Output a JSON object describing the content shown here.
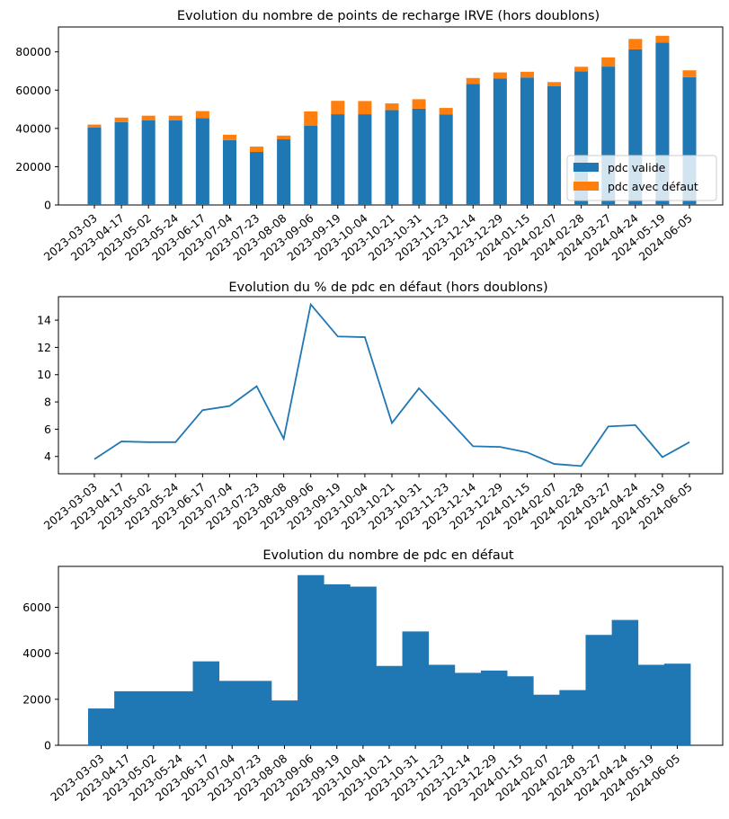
{
  "chart_data": [
    {
      "type": "bar",
      "stacked": true,
      "title": "Evolution du nombre de points de recharge IRVE (hors doublons)",
      "xlabel": "",
      "ylabel": "",
      "categories": [
        "2023-03-03",
        "2023-04-17",
        "2023-05-02",
        "2023-05-24",
        "2023-06-17",
        "2023-07-04",
        "2023-07-23",
        "2023-08-08",
        "2023-09-06",
        "2023-09-19",
        "2023-10-04",
        "2023-10-21",
        "2023-10-31",
        "2023-11-23",
        "2023-12-14",
        "2023-12-29",
        "2024-01-15",
        "2024-02-07",
        "2024-02-28",
        "2024-03-27",
        "2024-04-24",
        "2024-05-19",
        "2024-06-05"
      ],
      "series": [
        {
          "name": "pdc valide",
          "color": "#1f77b4",
          "values": [
            40400,
            43300,
            44300,
            44300,
            45400,
            33900,
            27700,
            34300,
            41500,
            47400,
            47400,
            49600,
            50300,
            47200,
            63200,
            66000,
            66600,
            62000,
            69800,
            72300,
            81300,
            84900,
            66800
          ]
        },
        {
          "name": "pdc avec défaut",
          "color": "#ff7f0e",
          "values": [
            1600,
            2350,
            2350,
            2350,
            3650,
            2800,
            2800,
            1950,
            7400,
            7000,
            6900,
            3450,
            4950,
            3500,
            3150,
            3250,
            3000,
            2200,
            2400,
            4800,
            5450,
            3500,
            3550
          ]
        }
      ],
      "ylim": [
        0,
        93000
      ],
      "yticks": [
        0,
        20000,
        40000,
        60000,
        80000
      ],
      "legend": "lower-right"
    },
    {
      "type": "line",
      "title": "Evolution du % de pdc en défaut (hors doublons)",
      "xlabel": "",
      "ylabel": "",
      "categories": [
        "2023-03-03",
        "2023-04-17",
        "2023-05-02",
        "2023-05-24",
        "2023-06-17",
        "2023-07-04",
        "2023-07-23",
        "2023-08-08",
        "2023-09-06",
        "2023-09-19",
        "2023-10-04",
        "2023-10-21",
        "2023-10-31",
        "2023-11-23",
        "2023-12-14",
        "2023-12-29",
        "2024-01-15",
        "2024-02-07",
        "2024-02-28",
        "2024-03-27",
        "2024-04-24",
        "2024-05-19",
        "2024-06-05"
      ],
      "series": [
        {
          "color": "#1f77b4",
          "values": [
            3.8,
            5.1,
            5.05,
            5.05,
            7.4,
            7.7,
            9.15,
            5.3,
            15.15,
            12.8,
            12.75,
            6.45,
            9.0,
            6.9,
            4.75,
            4.7,
            4.3,
            3.45,
            3.3,
            6.2,
            6.3,
            3.95,
            5.05
          ]
        }
      ],
      "ylim": [
        2.73,
        15.72
      ],
      "yticks": [
        4,
        6,
        8,
        10,
        12,
        14
      ]
    },
    {
      "type": "bar",
      "title": "Evolution du nombre de pdc en défaut",
      "xlabel": "",
      "ylabel": "",
      "categories": [
        "2023-03-03",
        "2023-04-17",
        "2023-05-02",
        "2023-05-24",
        "2023-06-17",
        "2023-07-04",
        "2023-07-23",
        "2023-08-08",
        "2023-09-06",
        "2023-09-19",
        "2023-10-04",
        "2023-10-21",
        "2023-10-31",
        "2023-11-23",
        "2023-12-14",
        "2023-12-29",
        "2024-01-15",
        "2024-02-07",
        "2024-02-28",
        "2024-03-27",
        "2024-04-24",
        "2024-05-19",
        "2024-06-05"
      ],
      "series": [
        {
          "color": "#1f77b4",
          "values": [
            1600,
            2350,
            2350,
            2350,
            3650,
            2800,
            2800,
            1950,
            7400,
            7000,
            6900,
            3450,
            4950,
            3500,
            3150,
            3250,
            3000,
            2200,
            2400,
            4800,
            5450,
            3500,
            3550
          ]
        }
      ],
      "ylim": [
        0,
        7780
      ],
      "yticks": [
        0,
        2000,
        4000,
        6000
      ]
    }
  ]
}
